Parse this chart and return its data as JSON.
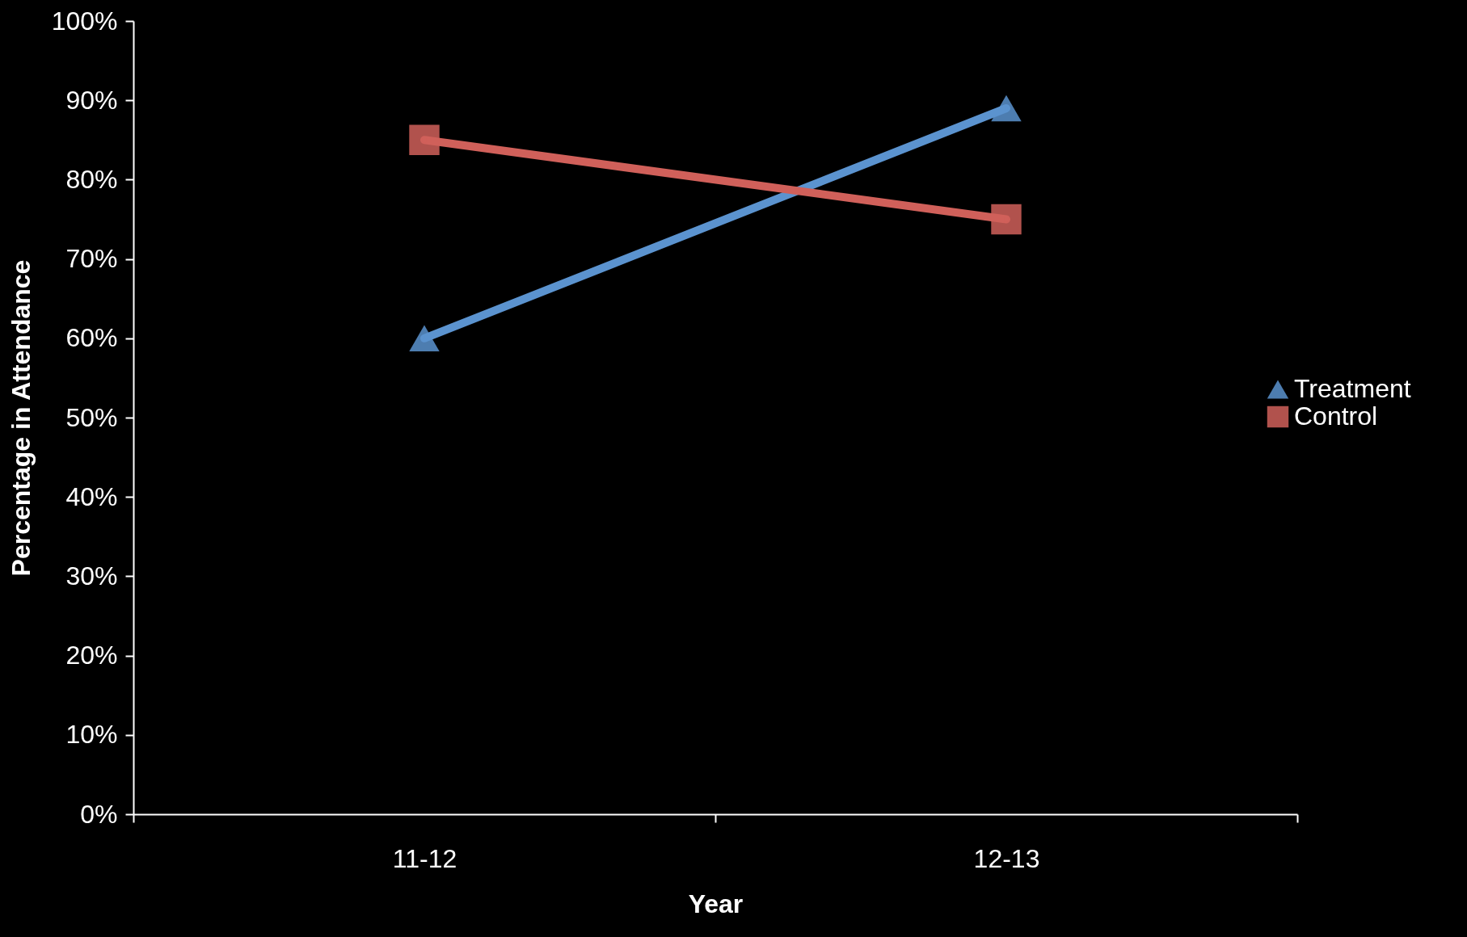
{
  "chart_data": {
    "type": "line",
    "xlabel": "Year",
    "ylabel": "Percentage in Attendance",
    "categories": [
      "11-12",
      "12-13"
    ],
    "series": [
      {
        "name": "Treatment",
        "color": "#5b93cf",
        "marker": "triangle",
        "values": [
          60,
          89
        ]
      },
      {
        "name": "Control",
        "color": "#d0605a",
        "marker": "square",
        "values": [
          85,
          75
        ]
      }
    ],
    "ylim": [
      0,
      100
    ],
    "yticks": [
      {
        "value": 0,
        "label": "0%"
      },
      {
        "value": 10,
        "label": "10%"
      },
      {
        "value": 20,
        "label": "20%"
      },
      {
        "value": 30,
        "label": "30%"
      },
      {
        "value": 40,
        "label": "40%"
      },
      {
        "value": 50,
        "label": "50%"
      },
      {
        "value": 60,
        "label": "60%"
      },
      {
        "value": 70,
        "label": "70%"
      },
      {
        "value": 80,
        "label": "80%"
      },
      {
        "value": 90,
        "label": "90%"
      },
      {
        "value": 100,
        "label": "100%"
      }
    ],
    "grid": false,
    "legend": "right"
  }
}
